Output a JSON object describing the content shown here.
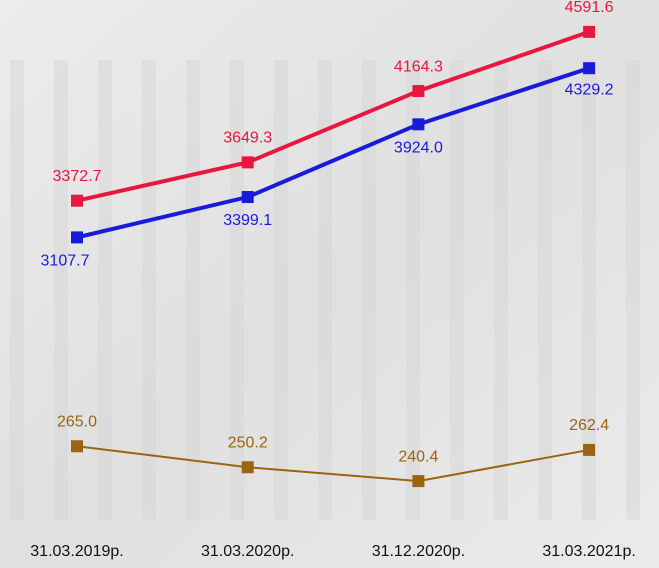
{
  "chart_data": {
    "type": "line",
    "categories": [
      "31.03.2019р.",
      "31.03.2020р.",
      "31.12.2020р.",
      "31.03.2021р."
    ],
    "series": [
      {
        "name": null,
        "color": "#e8173f",
        "values": [
          3372.7,
          3649.3,
          4164.3,
          4591.6
        ]
      },
      {
        "name": null,
        "color": "#1a1adb",
        "values": [
          3107.7,
          3399.1,
          3924.0,
          4329.2
        ],
        "value_labels": [
          "3107.7",
          "3399.1",
          "3924.0",
          "4329.2"
        ]
      },
      {
        "name": null,
        "color": "#9a6410",
        "axis": "y2",
        "values": [
          265.0,
          250.2,
          240.4,
          262.4
        ],
        "value_labels": [
          "265.0",
          "250.2",
          "240.4",
          "262.4"
        ]
      }
    ],
    "ylim": [
      2800,
      4800
    ],
    "y2lim": [
      220,
      280
    ]
  }
}
